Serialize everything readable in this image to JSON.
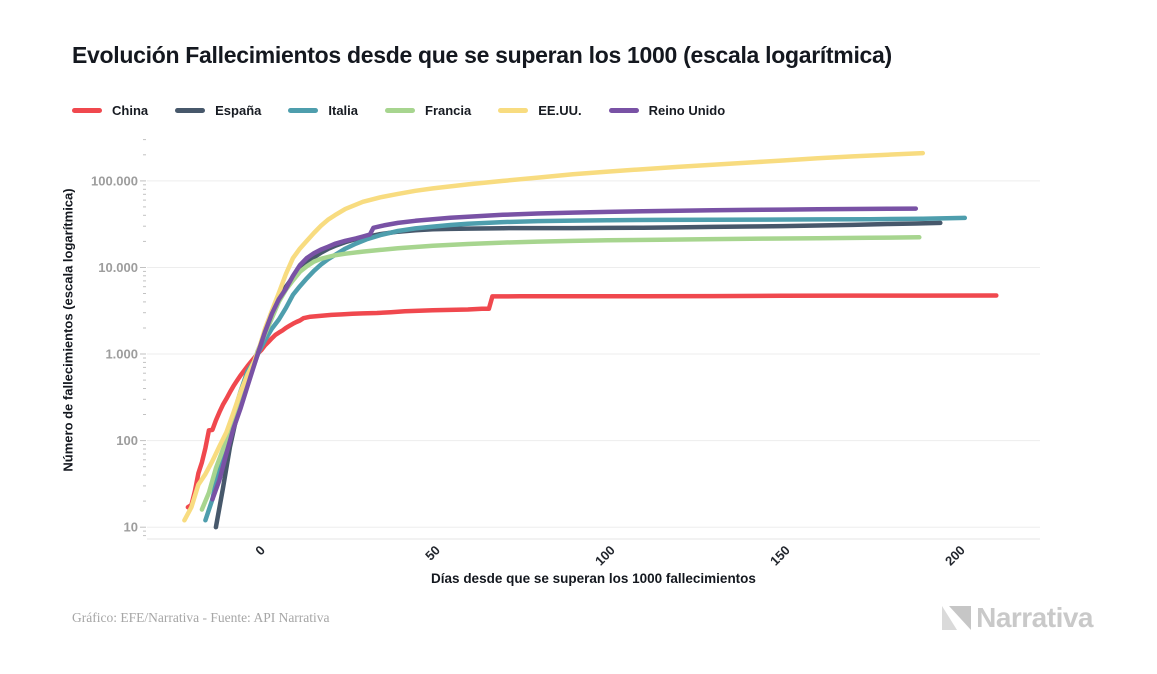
{
  "title": "Evolución Fallecimientos desde que se superan los 1000 (escala logarítmica)",
  "legend": [
    {
      "label": "China",
      "color": "#f0484e"
    },
    {
      "label": "España",
      "color": "#47586b"
    },
    {
      "label": "Italia",
      "color": "#4e9ead"
    },
    {
      "label": "Francia",
      "color": "#a7d58f"
    },
    {
      "label": "EE.UU.",
      "color": "#f8dc80"
    },
    {
      "label": "Reino Unido",
      "color": "#7952a5"
    }
  ],
  "footer": {
    "credit": "Gráfico: EFE/Narrativa - Fuente: API Narrativa",
    "brand": "Narrativa"
  },
  "chart_data": {
    "type": "line",
    "title": "Evolución Fallecimientos desde que se superan los 1000 (escala logarítmica)",
    "xlabel": "Días desde que se superan los 1000 fallecimientos",
    "ylabel": "Número de fallecimientos (escala logarítmica)",
    "log_y": true,
    "grid": "horizontal-decades",
    "legend_position": "top-left",
    "xlim": [
      -31.7,
      223.5
    ],
    "ylim": [
      7.3,
      330000
    ],
    "x_ticks": [
      0,
      50,
      100,
      150,
      200
    ],
    "y_ticks": [
      {
        "value": 10,
        "label": "10"
      },
      {
        "value": 100,
        "label": "100"
      },
      {
        "value": 1000,
        "label": "1.000"
      },
      {
        "value": 10000,
        "label": "10.000"
      },
      {
        "value": 100000,
        "label": "100.000"
      }
    ],
    "series": [
      {
        "name": "China",
        "color": "#f0484e",
        "points": [
          [
            -20,
            17
          ],
          [
            -19,
            18
          ],
          [
            -18,
            26
          ],
          [
            -17,
            42
          ],
          [
            -16,
            56
          ],
          [
            -15,
            82
          ],
          [
            -14,
            131
          ],
          [
            -13,
            133
          ],
          [
            -12,
            171
          ],
          [
            -11,
            213
          ],
          [
            -10,
            259
          ],
          [
            -9,
            304
          ],
          [
            -8,
            361
          ],
          [
            -7,
            425
          ],
          [
            -6,
            491
          ],
          [
            -5,
            563
          ],
          [
            -4,
            637
          ],
          [
            -3,
            722
          ],
          [
            -2,
            811
          ],
          [
            -1,
            908
          ],
          [
            0,
            1016
          ],
          [
            1,
            1113
          ],
          [
            2,
            1259
          ],
          [
            3,
            1380
          ],
          [
            4,
            1523
          ],
          [
            5,
            1665
          ],
          [
            6,
            1770
          ],
          [
            7,
            1868
          ],
          [
            8,
            2004
          ],
          [
            9,
            2118
          ],
          [
            10,
            2236
          ],
          [
            11,
            2345
          ],
          [
            12,
            2442
          ],
          [
            13,
            2592
          ],
          [
            15,
            2699
          ],
          [
            17,
            2744
          ],
          [
            19,
            2788
          ],
          [
            21,
            2835
          ],
          [
            24,
            2870
          ],
          [
            27,
            2912
          ],
          [
            30,
            2945
          ],
          [
            34,
            2977
          ],
          [
            38,
            3042
          ],
          [
            42,
            3122
          ],
          [
            46,
            3169
          ],
          [
            50,
            3199
          ],
          [
            55,
            3230
          ],
          [
            60,
            3270
          ],
          [
            64,
            3326
          ],
          [
            66,
            3342
          ],
          [
            67,
            4636
          ],
          [
            75,
            4638
          ],
          [
            90,
            4641
          ],
          [
            110,
            4648
          ],
          [
            130,
            4665
          ],
          [
            150,
            4711
          ],
          [
            170,
            4727
          ],
          [
            190,
            4735
          ],
          [
            211,
            4746
          ]
        ]
      },
      {
        "name": "España",
        "color": "#47586b",
        "points": [
          [
            -12,
            10
          ],
          [
            -10,
            28
          ],
          [
            -8,
            84
          ],
          [
            -6,
            195
          ],
          [
            -4,
            342
          ],
          [
            -2,
            598
          ],
          [
            0,
            1002
          ],
          [
            2,
            1753
          ],
          [
            4,
            2808
          ],
          [
            6,
            4365
          ],
          [
            8,
            5982
          ],
          [
            10,
            7716
          ],
          [
            12,
            9387
          ],
          [
            14,
            11198
          ],
          [
            16,
            13055
          ],
          [
            18,
            14792
          ],
          [
            20,
            16353
          ],
          [
            22,
            17756
          ],
          [
            25,
            19613
          ],
          [
            28,
            21282
          ],
          [
            31,
            22524
          ],
          [
            35,
            24275
          ],
          [
            40,
            25857
          ],
          [
            45,
            26920
          ],
          [
            50,
            27563
          ],
          [
            55,
            27888
          ],
          [
            60,
            28109
          ],
          [
            70,
            28385
          ],
          [
            80,
            28472
          ],
          [
            90,
            28503
          ],
          [
            100,
            28617
          ],
          [
            110,
            28797
          ],
          [
            120,
            29011
          ],
          [
            130,
            29418
          ],
          [
            140,
            29699
          ],
          [
            150,
            30004
          ],
          [
            160,
            30495
          ],
          [
            170,
            31034
          ],
          [
            180,
            31791
          ],
          [
            188,
            32225
          ],
          [
            195,
            32688
          ]
        ]
      },
      {
        "name": "Italia",
        "color": "#4e9ead",
        "points": [
          [
            -15,
            12
          ],
          [
            -13,
            21
          ],
          [
            -11,
            52
          ],
          [
            -9,
            107
          ],
          [
            -7,
            197
          ],
          [
            -5,
            366
          ],
          [
            -3,
            631
          ],
          [
            -1,
            827
          ],
          [
            0,
            1016
          ],
          [
            2,
            1441
          ],
          [
            4,
            1966
          ],
          [
            6,
            2503
          ],
          [
            8,
            3405
          ],
          [
            10,
            4825
          ],
          [
            12,
            6077
          ],
          [
            14,
            7503
          ],
          [
            16,
            9134
          ],
          [
            18,
            10779
          ],
          [
            20,
            12428
          ],
          [
            22,
            13915
          ],
          [
            25,
            16523
          ],
          [
            28,
            18849
          ],
          [
            31,
            21067
          ],
          [
            35,
            23660
          ],
          [
            40,
            26384
          ],
          [
            45,
            28236
          ],
          [
            50,
            29684
          ],
          [
            55,
            30911
          ],
          [
            60,
            31908
          ],
          [
            70,
            33415
          ],
          [
            80,
            34301
          ],
          [
            90,
            34818
          ],
          [
            100,
            35102
          ],
          [
            115,
            35392
          ],
          [
            130,
            35597
          ],
          [
            145,
            35758
          ],
          [
            160,
            35894
          ],
          [
            175,
            36061
          ],
          [
            190,
            36474
          ],
          [
            202,
            37338
          ]
        ]
      },
      {
        "name": "Francia",
        "color": "#a7d58f",
        "points": [
          [
            -16,
            16
          ],
          [
            -14,
            25
          ],
          [
            -12,
            48
          ],
          [
            -10,
            79
          ],
          [
            -8,
            128
          ],
          [
            -6,
            218
          ],
          [
            -4,
            372
          ],
          [
            -2,
            632
          ],
          [
            0,
            1100
          ],
          [
            2,
            1696
          ],
          [
            4,
            2606
          ],
          [
            6,
            4032
          ],
          [
            8,
            5532
          ],
          [
            10,
            7091
          ],
          [
            12,
            8911
          ],
          [
            14,
            10343
          ],
          [
            16,
            11681
          ],
          [
            18,
            12606
          ],
          [
            20,
            13197
          ],
          [
            22,
            13832
          ],
          [
            25,
            14412
          ],
          [
            30,
            15237
          ],
          [
            35,
            15970
          ],
          [
            40,
            16642
          ],
          [
            45,
            17250
          ],
          [
            50,
            17788
          ],
          [
            60,
            18675
          ],
          [
            70,
            19383
          ],
          [
            80,
            19905
          ],
          [
            90,
            20285
          ],
          [
            100,
            20593
          ],
          [
            115,
            20942
          ],
          [
            130,
            21240
          ],
          [
            145,
            21518
          ],
          [
            160,
            21790
          ],
          [
            175,
            22035
          ],
          [
            189,
            22320
          ]
        ]
      },
      {
        "name": "EE.UU.",
        "color": "#f8dc80",
        "points": [
          [
            -21,
            12
          ],
          [
            -19,
            17
          ],
          [
            -17,
            31
          ],
          [
            -15,
            41
          ],
          [
            -13,
            58
          ],
          [
            -11,
            86
          ],
          [
            -9,
            125
          ],
          [
            -7,
            210
          ],
          [
            -5,
            360
          ],
          [
            -3,
            575
          ],
          [
            -1,
            830
          ],
          [
            0,
            1050
          ],
          [
            2,
            1940
          ],
          [
            4,
            3170
          ],
          [
            6,
            5100
          ],
          [
            8,
            8400
          ],
          [
            10,
            12800
          ],
          [
            12,
            16500
          ],
          [
            14,
            20400
          ],
          [
            16,
            25000
          ],
          [
            18,
            30300
          ],
          [
            20,
            35500
          ],
          [
            22,
            40100
          ],
          [
            25,
            47500
          ],
          [
            30,
            57300
          ],
          [
            35,
            64700
          ],
          [
            40,
            70800
          ],
          [
            45,
            76900
          ],
          [
            50,
            81800
          ],
          [
            60,
            91000
          ],
          [
            70,
            100000
          ],
          [
            80,
            109000
          ],
          [
            90,
            119000
          ],
          [
            100,
            128000
          ],
          [
            110,
            136500
          ],
          [
            120,
            145000
          ],
          [
            130,
            153500
          ],
          [
            140,
            162500
          ],
          [
            150,
            172000
          ],
          [
            160,
            182500
          ],
          [
            170,
            192000
          ],
          [
            180,
            200500
          ],
          [
            190,
            209500
          ]
        ]
      },
      {
        "name": "Reino Unido",
        "color": "#7952a5",
        "points": [
          [
            -13,
            21
          ],
          [
            -11,
            35
          ],
          [
            -9,
            71
          ],
          [
            -7,
            137
          ],
          [
            -5,
            233
          ],
          [
            -3,
            422
          ],
          [
            -1,
            759
          ],
          [
            0,
            1019
          ],
          [
            2,
            1789
          ],
          [
            4,
            2921
          ],
          [
            6,
            4313
          ],
          [
            8,
            5683
          ],
          [
            10,
            7978
          ],
          [
            12,
            10612
          ],
          [
            14,
            12868
          ],
          [
            16,
            14576
          ],
          [
            18,
            16060
          ],
          [
            20,
            17337
          ],
          [
            22,
            18738
          ],
          [
            25,
            20319
          ],
          [
            28,
            21678
          ],
          [
            30,
            22792
          ],
          [
            32,
            24055
          ],
          [
            33,
            28734
          ],
          [
            36,
            30615
          ],
          [
            40,
            32692
          ],
          [
            45,
            34636
          ],
          [
            50,
            36042
          ],
          [
            55,
            37460
          ],
          [
            60,
            38489
          ],
          [
            70,
            40597
          ],
          [
            80,
            41969
          ],
          [
            90,
            43011
          ],
          [
            100,
            43846
          ],
          [
            110,
            44517
          ],
          [
            120,
            45119
          ],
          [
            130,
            45675
          ],
          [
            140,
            46201
          ],
          [
            150,
            46596
          ],
          [
            160,
            46991
          ],
          [
            170,
            47298
          ],
          [
            180,
            47573
          ],
          [
            188,
            47804
          ]
        ]
      }
    ]
  }
}
